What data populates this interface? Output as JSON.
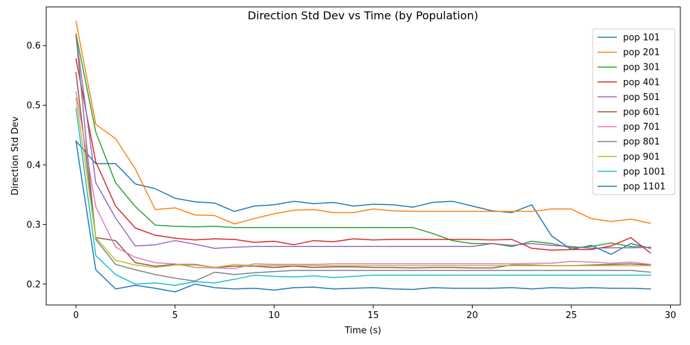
{
  "chart_data": {
    "type": "line",
    "title": "Direction Std Dev vs Time (by Population)",
    "xlabel": "Time (s)",
    "ylabel": "Direction Std Dev",
    "xlim": [
      -1.5,
      30.5
    ],
    "ylim": [
      0.165,
      0.665
    ],
    "xticks": [
      0,
      5,
      10,
      15,
      20,
      25,
      30
    ],
    "yticks": [
      0.2,
      0.3,
      0.4,
      0.5,
      0.6
    ],
    "grid": false,
    "legend_position": "top-right",
    "x": [
      0,
      1,
      2,
      3,
      4,
      5,
      6,
      7,
      8,
      9,
      10,
      11,
      12,
      13,
      14,
      15,
      16,
      17,
      18,
      19,
      20,
      21,
      22,
      23,
      24,
      25,
      26,
      27,
      28,
      29
    ],
    "series": [
      {
        "name": "pop 101",
        "color": "#1f77b4",
        "values": [
          0.44,
          0.402,
          0.402,
          0.368,
          0.36,
          0.344,
          0.338,
          0.336,
          0.322,
          0.331,
          0.333,
          0.339,
          0.335,
          0.337,
          0.331,
          0.334,
          0.333,
          0.329,
          0.337,
          0.339,
          0.331,
          0.323,
          0.32,
          0.333,
          0.281,
          0.258,
          0.265,
          0.25,
          0.268,
          0.26
        ]
      },
      {
        "name": "pop 201",
        "color": "#ff7f0e",
        "values": [
          0.641,
          0.468,
          0.444,
          0.393,
          0.325,
          0.328,
          0.316,
          0.315,
          0.301,
          0.31,
          0.318,
          0.324,
          0.325,
          0.32,
          0.32,
          0.326,
          0.323,
          0.322,
          0.322,
          0.322,
          0.322,
          0.322,
          0.322,
          0.322,
          0.326,
          0.326,
          0.31,
          0.305,
          0.309,
          0.302
        ]
      },
      {
        "name": "pop 301",
        "color": "#2ca02c",
        "values": [
          0.62,
          0.455,
          0.37,
          0.33,
          0.299,
          0.297,
          0.296,
          0.297,
          0.295,
          0.295,
          0.295,
          0.295,
          0.295,
          0.295,
          0.295,
          0.295,
          0.295,
          0.295,
          0.285,
          0.273,
          0.268,
          0.268,
          0.263,
          0.272,
          0.268,
          0.261,
          0.263,
          0.269,
          0.263,
          0.261
        ]
      },
      {
        "name": "pop 401",
        "color": "#d62728",
        "values": [
          0.578,
          0.405,
          0.331,
          0.294,
          0.282,
          0.277,
          0.274,
          0.276,
          0.275,
          0.27,
          0.272,
          0.266,
          0.273,
          0.271,
          0.276,
          0.274,
          0.275,
          0.275,
          0.275,
          0.275,
          0.275,
          0.274,
          0.275,
          0.26,
          0.257,
          0.258,
          0.258,
          0.264,
          0.278,
          0.252
        ]
      },
      {
        "name": "pop 501",
        "color": "#9467bd",
        "values": [
          0.617,
          0.37,
          0.311,
          0.264,
          0.266,
          0.273,
          0.267,
          0.26,
          0.262,
          0.263,
          0.263,
          0.263,
          0.263,
          0.263,
          0.263,
          0.263,
          0.263,
          0.263,
          0.263,
          0.263,
          0.263,
          0.268,
          0.265,
          0.268,
          0.265,
          0.263,
          0.26,
          0.261,
          0.261,
          0.262
        ]
      },
      {
        "name": "pop 601",
        "color": "#8c564b",
        "values": [
          0.555,
          0.278,
          0.273,
          0.236,
          0.23,
          0.233,
          0.233,
          0.228,
          0.23,
          0.23,
          0.228,
          0.23,
          0.228,
          0.229,
          0.229,
          0.228,
          0.228,
          0.227,
          0.228,
          0.228,
          0.227,
          0.227,
          0.232,
          0.232,
          0.231,
          0.231,
          0.232,
          0.233,
          0.234,
          0.232
        ]
      },
      {
        "name": "pop 701",
        "color": "#e377c2",
        "values": [
          0.523,
          0.33,
          0.262,
          0.245,
          0.236,
          0.234,
          0.228,
          0.227,
          0.226,
          0.234,
          0.233,
          0.233,
          0.233,
          0.234,
          0.234,
          0.234,
          0.234,
          0.234,
          0.234,
          0.234,
          0.234,
          0.234,
          0.234,
          0.235,
          0.235,
          0.238,
          0.237,
          0.235,
          0.237,
          0.233
        ]
      },
      {
        "name": "pop 801",
        "color": "#7f7f7f",
        "values": [
          0.618,
          0.275,
          0.233,
          0.224,
          0.216,
          0.21,
          0.205,
          0.22,
          0.216,
          0.219,
          0.221,
          0.223,
          0.223,
          0.223,
          0.223,
          0.223,
          0.223,
          0.223,
          0.223,
          0.223,
          0.223,
          0.223,
          0.223,
          0.223,
          0.223,
          0.223,
          0.223,
          0.223,
          0.223,
          0.22
        ]
      },
      {
        "name": "pop 901",
        "color": "#bcbd22",
        "values": [
          0.512,
          0.278,
          0.24,
          0.232,
          0.228,
          0.232,
          0.232,
          0.228,
          0.233,
          0.231,
          0.231,
          0.231,
          0.231,
          0.231,
          0.231,
          0.231,
          0.231,
          0.231,
          0.231,
          0.231,
          0.231,
          0.231,
          0.231,
          0.231,
          0.231,
          0.231,
          0.231,
          0.231,
          0.231,
          0.231
        ]
      },
      {
        "name": "pop 1001",
        "color": "#17becf",
        "values": [
          0.495,
          0.248,
          0.216,
          0.2,
          0.202,
          0.198,
          0.204,
          0.202,
          0.208,
          0.215,
          0.213,
          0.212,
          0.214,
          0.211,
          0.213,
          0.215,
          0.215,
          0.215,
          0.215,
          0.215,
          0.215,
          0.215,
          0.215,
          0.215,
          0.215,
          0.215,
          0.215,
          0.215,
          0.215,
          0.215
        ]
      },
      {
        "name": "pop 1101",
        "color": "#1f77b4",
        "values": [
          0.44,
          0.224,
          0.192,
          0.198,
          0.193,
          0.187,
          0.2,
          0.194,
          0.192,
          0.193,
          0.19,
          0.194,
          0.195,
          0.192,
          0.193,
          0.194,
          0.192,
          0.191,
          0.194,
          0.193,
          0.193,
          0.193,
          0.194,
          0.192,
          0.194,
          0.193,
          0.194,
          0.193,
          0.193,
          0.192
        ]
      }
    ]
  }
}
